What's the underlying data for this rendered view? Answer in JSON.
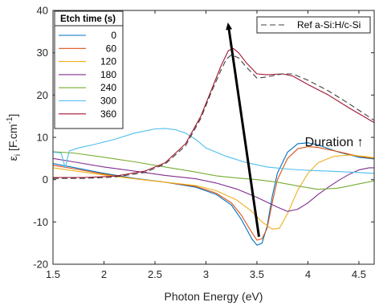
{
  "chart_data": {
    "type": "line",
    "xlabel": "Photon Energy (eV)",
    "ylabel_main": "ε",
    "ylabel_sub": "i",
    "ylabel_units": " [F.cm",
    "ylabel_sup": "-1",
    "ylabel_close": "]",
    "xlim": [
      1.5,
      4.65
    ],
    "ylim": [
      -20,
      40
    ],
    "xticks": [
      1.5,
      2,
      2.5,
      3,
      3.5,
      4,
      4.5
    ],
    "xtick_labels": [
      "1.5",
      "2",
      "2.5",
      "3",
      "3.5",
      "4",
      "4.5"
    ],
    "yticks": [
      -20,
      -10,
      0,
      10,
      20,
      30,
      40
    ],
    "ytick_labels": [
      "-20",
      "-10",
      "0",
      "10",
      "20",
      "30",
      "40"
    ],
    "legend_title": "Etch time (s)",
    "legend_placement": "top-left",
    "reference_legend_placement": "top-right",
    "annotation": {
      "text": "Duration ↑",
      "x": 3.97,
      "y": 7.9
    },
    "arrow": {
      "from": [
        3.52,
        -13.5
      ],
      "to": [
        3.22,
        36.4
      ]
    },
    "series": [
      {
        "name": "0",
        "color": "#0072BD",
        "style": "solid",
        "x": [
          1.5,
          1.7,
          2.0,
          2.3,
          2.6,
          2.9,
          3.1,
          3.25,
          3.35,
          3.45,
          3.5,
          3.55,
          3.6,
          3.65,
          3.7,
          3.8,
          3.9,
          4.0,
          4.1,
          4.3,
          4.5,
          4.65
        ],
        "y": [
          3.8,
          2.9,
          1.5,
          0.3,
          -0.6,
          -1.8,
          -3.5,
          -6.0,
          -9.5,
          -14.0,
          -15.5,
          -15.0,
          -11.0,
          -4.0,
          1.5,
          6.5,
          8.5,
          8.7,
          8.2,
          6.5,
          5.3,
          4.9
        ]
      },
      {
        "name": "60",
        "color": "#D95319",
        "style": "solid",
        "x": [
          1.5,
          1.7,
          2.0,
          2.3,
          2.6,
          2.9,
          3.1,
          3.25,
          3.35,
          3.45,
          3.5,
          3.55,
          3.6,
          3.65,
          3.7,
          3.8,
          3.9,
          4.0,
          4.1,
          4.3,
          4.5,
          4.65
        ],
        "y": [
          3.4,
          2.6,
          1.3,
          0.2,
          -0.6,
          -1.6,
          -3.2,
          -5.5,
          -8.5,
          -12.5,
          -14.3,
          -14.0,
          -11.5,
          -5.5,
          0.0,
          5.0,
          7.3,
          7.8,
          7.6,
          6.6,
          5.5,
          5.0
        ]
      },
      {
        "name": "120",
        "color": "#EDB120",
        "style": "solid",
        "x": [
          1.5,
          1.7,
          2.0,
          2.3,
          2.6,
          2.9,
          3.1,
          3.3,
          3.45,
          3.55,
          3.65,
          3.72,
          3.8,
          3.9,
          4.0,
          4.1,
          4.25,
          4.4,
          4.55,
          4.65
        ],
        "y": [
          2.8,
          2.1,
          1.1,
          0.2,
          -0.6,
          -1.4,
          -2.6,
          -4.8,
          -7.5,
          -10.0,
          -11.7,
          -11.5,
          -8.0,
          -2.5,
          1.5,
          4.0,
          5.5,
          5.8,
          5.5,
          5.2
        ]
      },
      {
        "name": "180",
        "color": "#7E2F8E",
        "style": "solid",
        "x": [
          1.5,
          1.7,
          2.0,
          2.3,
          2.6,
          2.9,
          3.1,
          3.3,
          3.5,
          3.7,
          3.8,
          3.9,
          4.0,
          4.1,
          4.2,
          4.3,
          4.4,
          4.5,
          4.6,
          4.65
        ],
        "y": [
          5.0,
          4.2,
          3.0,
          2.0,
          1.0,
          0.2,
          -0.8,
          -2.2,
          -4.2,
          -6.5,
          -7.5,
          -7.0,
          -5.5,
          -3.5,
          -1.8,
          -0.2,
          1.2,
          2.3,
          2.8,
          2.8
        ]
      },
      {
        "name": "240",
        "color": "#77AC30",
        "style": "solid",
        "x": [
          1.5,
          1.7,
          2.0,
          2.3,
          2.6,
          2.9,
          3.1,
          3.3,
          3.5,
          3.7,
          3.9,
          4.1,
          4.3,
          4.5,
          4.65
        ],
        "y": [
          6.6,
          6.3,
          5.3,
          4.2,
          3.0,
          1.8,
          0.9,
          0.4,
          0.0,
          -0.6,
          -1.5,
          -2.3,
          -2.0,
          -1.0,
          -0.3
        ]
      },
      {
        "name": "300",
        "color": "#4DBEEE",
        "style": "solid",
        "x": [
          1.5,
          1.58,
          1.62,
          1.66,
          1.75,
          1.9,
          2.1,
          2.3,
          2.5,
          2.6,
          2.7,
          2.8,
          2.9,
          3.0,
          3.2,
          3.4,
          3.6,
          3.8,
          4.0,
          4.2,
          4.4,
          4.65
        ],
        "y": [
          6.5,
          6.3,
          2.8,
          6.8,
          7.5,
          8.3,
          9.5,
          11.0,
          12.0,
          12.1,
          11.8,
          11.0,
          9.5,
          7.5,
          5.5,
          4.0,
          3.0,
          2.5,
          2.2,
          2.0,
          1.8,
          1.5
        ]
      },
      {
        "name": "360",
        "color": "#A2142F",
        "style": "solid",
        "x": [
          1.5,
          1.8,
          2.1,
          2.4,
          2.6,
          2.8,
          2.95,
          3.05,
          3.15,
          3.22,
          3.27,
          3.32,
          3.4,
          3.5,
          3.6,
          3.75,
          3.85,
          4.0,
          4.2,
          4.4,
          4.65
        ],
        "y": [
          0.5,
          0.5,
          0.8,
          2.0,
          4.0,
          8.5,
          15.0,
          21.0,
          27.0,
          30.5,
          31.0,
          30.0,
          27.5,
          25.0,
          24.8,
          25.0,
          24.5,
          22.5,
          20.0,
          17.0,
          13.5
        ]
      },
      {
        "name": "Ref a-Si:H/c-Si",
        "color": "#404040",
        "style": "dashed",
        "x": [
          1.5,
          1.8,
          2.1,
          2.4,
          2.6,
          2.8,
          2.95,
          3.05,
          3.15,
          3.2,
          3.25,
          3.32,
          3.4,
          3.5,
          3.6,
          3.75,
          3.85,
          4.0,
          4.2,
          4.4,
          4.65
        ],
        "y": [
          0.3,
          0.3,
          0.6,
          1.7,
          3.7,
          8.0,
          14.5,
          20.5,
          26.0,
          28.5,
          29.5,
          28.8,
          26.5,
          24.0,
          24.3,
          25.0,
          25.0,
          23.5,
          21.0,
          18.0,
          14.0
        ]
      }
    ]
  }
}
